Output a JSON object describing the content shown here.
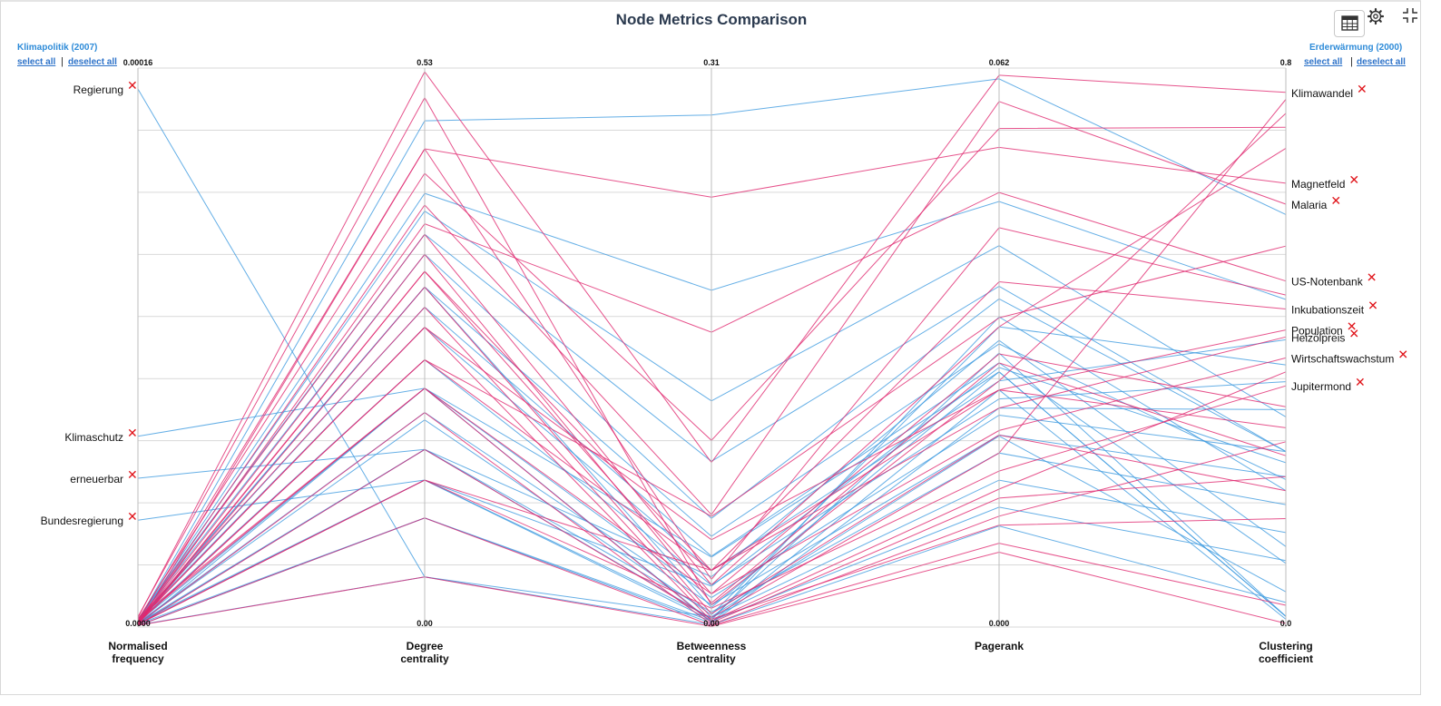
{
  "title": "Node Metrics Comparison",
  "left_panel": {
    "corpus_label": "Klimapolitik (2007)",
    "select_all": "select all",
    "separator": "|",
    "deselect_all": "deselect all"
  },
  "right_panel": {
    "corpus_label": "Erderwärmung (2000)",
    "select_all": "select all",
    "separator": "|",
    "deselect_all": "deselect all"
  },
  "icons": {
    "table": "table-icon",
    "settings": "gear-icon",
    "exit_fullscreen": "exit-fullscreen-icon"
  },
  "colors": {
    "left_series": "#3f9be0",
    "right_series": "#e0286f",
    "remove": "#e0141a",
    "grid": "#d9d9d9"
  },
  "remove_glyph": "✕",
  "chart_data": {
    "type": "parallel-coordinates",
    "axes": [
      {
        "name": "Normalised frequency",
        "label_lines": [
          "Normalised",
          "frequency"
        ],
        "max_label": "0.00016",
        "min_label": "0.0000",
        "range": [
          0,
          0.00016
        ]
      },
      {
        "name": "Degree centrality",
        "label_lines": [
          "Degree",
          "centrality"
        ],
        "max_label": "0.53",
        "min_label": "0.00",
        "range": [
          0,
          0.53
        ]
      },
      {
        "name": "Betweenness centrality",
        "label_lines": [
          "Betweenness",
          "centrality"
        ],
        "max_label": "0.31",
        "min_label": "0.00",
        "range": [
          0,
          0.31
        ]
      },
      {
        "name": "Pagerank",
        "label_lines": [
          "Pagerank"
        ],
        "max_label": "0.062",
        "min_label": "0.000",
        "range": [
          0,
          0.062
        ]
      },
      {
        "name": "Clustering coefficient",
        "label_lines": [
          "Clustering",
          "coefficient"
        ],
        "max_label": "0.8",
        "min_label": "0.0",
        "range": [
          0,
          0.8
        ]
      }
    ],
    "grid": true,
    "series": [
      {
        "name": "Klimapolitik (2007)",
        "color": "#3f9be0",
        "labeled_axis": 0,
        "lines": [
          {
            "label": "Regierung",
            "values": [
              0.000154,
              0.0475,
              0.0058,
              0.0212,
              0.0504
            ]
          },
          {
            "label": "Klimaschutz",
            "values": [
              5.46e-05,
              0.2264,
              0.0388,
              0.0283,
              0.0152
            ]
          },
          {
            "label": "erneuerbar",
            "values": [
              4.26e-05,
              0.1684,
              0.0279,
              0.0318,
              0.1152
            ]
          },
          {
            "label": "Bundesregierung",
            "values": [
              3.06e-05,
              0.1394,
              0.0227,
              0.0288,
              0.2352
            ]
          },
          {
            "values": [
              1.7e-06,
              0.48,
              0.284,
              0.0608,
              0.5904
            ]
          },
          {
            "values": [
              2e-06,
              0.4112,
              0.1868,
              0.0472,
              0.4688
            ]
          },
          {
            "values": [
              2e-06,
              0.3944,
              0.1254,
              0.0423,
              0.3008
            ]
          },
          {
            "values": [
              2.3e-06,
              0.3724,
              0.0919,
              0.0378,
              0.2512
            ]
          },
          {
            "values": [
              1.9e-06,
              0.3534,
              0.0603,
              0.0364,
              0.2512
            ]
          },
          {
            "values": [
              1.5e-06,
              0.3224,
              0.0503,
              0.0314,
              0.2112
            ]
          },
          {
            "values": [
              1.8e-06,
              0.3033,
              0.0393,
              0.0293,
              0.0912
            ]
          },
          {
            "values": [
              2e-06,
              0.2843,
              0.0313,
              0.0273,
              0.4112
            ]
          },
          {
            "values": [
              1.6e-06,
              0.2534,
              0.0233,
              0.0253,
              0.3512
            ]
          },
          {
            "values": [
              1.4e-06,
              0.2264,
              0.0163,
              0.0235,
              0.2512
            ]
          },
          {
            "values": [
              1.2e-06,
              0.2034,
              0.0123,
              0.0213,
              0.2152
            ]
          },
          {
            "values": [
              1e-06,
              0.1684,
              0.0083,
              0.0193,
              0.1752
            ]
          },
          {
            "values": [
              9e-07,
              0.1394,
              0.0053,
              0.0163,
              0.1352
            ]
          },
          {
            "values": [
              8e-07,
              0.1034,
              0.0033,
              0.0133,
              0.0952
            ]
          },
          {
            "values": [
              6e-07,
              0.0475,
              0.0013,
              0.0112,
              0.0352
            ]
          },
          {
            "values": [
              5e-07,
              0.2264,
              0.0028,
              0.0263,
              0.0112
            ]
          },
          {
            "values": [
              7e-07,
              0.1684,
              0.0048,
              0.0304,
              0.0152
            ]
          },
          {
            "values": [
              1.1e-06,
              0.1964,
              0.0068,
              0.0333,
              0.3752
            ]
          },
          {
            "values": [
              1.3e-06,
              0.1394,
              0.0038,
              0.0344,
              0.1952
            ]
          },
          {
            "values": [
              1.6e-06,
              0.3224,
              0.0109,
              0.0283,
              0.0152
            ]
          },
          {
            "values": [
              4e-07,
              0.1034,
              0.0021,
              0.0243,
              0.3112
            ]
          }
        ]
      },
      {
        "name": "Erderwärmung (2000)",
        "color": "#e0286f",
        "labeled_axis": 4,
        "lines": [
          {
            "label": "Klimawandel",
            "values": [
              2.7e-06,
              0.5265,
              0.0913,
              0.0612,
              0.7652
            ]
          },
          {
            "label": "Magnetfeld",
            "values": [
              1.7e-06,
              0.4534,
              0.2384,
              0.0532,
              0.6352
            ]
          },
          {
            "label": "Malaria",
            "values": [
              1.3e-06,
              0.4002,
              0.0623,
              0.0583,
              0.6052
            ]
          },
          {
            "label": "US-Notenbank",
            "values": [
              9e-07,
              0.3824,
              0.1635,
              0.0482,
              0.4952
            ]
          },
          {
            "label": "Inkubationszeit",
            "values": [
              1.1e-06,
              0.3373,
              0.0314,
              0.0383,
              0.4552
            ]
          },
          {
            "label": "Population",
            "values": [
              1.6e-06,
              0.2843,
              0.0484,
              0.0263,
              0.4252
            ]
          },
          {
            "label": "Heizölpreis",
            "values": [
              1.3e-06,
              0.2534,
              0.0314,
              0.0243,
              0.4152
            ]
          },
          {
            "label": "Wirtschaftswachstum",
            "values": [
              2.5e-06,
              0.2264,
              0.0184,
              0.0218,
              0.3852
            ]
          },
          {
            "label": "Jupitermond",
            "values": [
              7e-07,
              0.1394,
              0.0104,
              0.0173,
              0.3452
            ]
          },
          {
            "values": [
              2.9e-06,
              0.5019,
              0.0123,
              0.0273,
              0.7352
            ]
          },
          {
            "values": [
              2.2e-06,
              0.4302,
              0.1035,
              0.0553,
              0.7152
            ]
          },
          {
            "values": [
              1.8e-06,
              0.3724,
              0.0234,
              0.0333,
              0.6852
            ]
          },
          {
            "values": [
              1.2e-06,
              0.3534,
              0.0134,
              0.0293,
              0.2452
            ]
          },
          {
            "values": [
              9e-07,
              0.3224,
              0.0074,
              0.0213,
              0.1952
            ]
          },
          {
            "values": [
              2.1e-06,
              0.3033,
              0.0053,
              0.0193,
              0.7552
            ]
          },
          {
            "values": [
              1.5e-06,
              0.2843,
              0.0034,
              0.0153,
              0.3652
            ]
          },
          {
            "values": [
              1.9e-06,
              0.2264,
              0.0024,
              0.0143,
              0.2152
            ]
          },
          {
            "values": [
              9e-07,
              0.2034,
              0.0014,
              0.0123,
              0.2652
            ]
          },
          {
            "values": [
              6e-07,
              0.1684,
              0.0044,
              0.0113,
              0.1552
            ]
          },
          {
            "values": [
              4e-07,
              0.1034,
              0.0009,
              0.0093,
              0.0312
            ]
          },
          {
            "values": [
              5e-07,
              0.0475,
              0.0004,
              0.0083,
              0.0052
            ]
          },
          {
            "values": [
              1.1e-06,
              0.2534,
              0.0614,
              0.0343,
              0.5452
            ]
          },
          {
            "values": [
              3e-07,
              0.4534,
              0.0264,
              0.0443,
              0.4752
            ]
          },
          {
            "values": [
              7e-07,
              0.3373,
              0.0184,
              0.0303,
              0.3152
            ]
          },
          {
            "values": [
              8e-07,
              0.1394,
              0.0314,
              0.0263,
              0.2852
            ]
          }
        ]
      }
    ]
  }
}
